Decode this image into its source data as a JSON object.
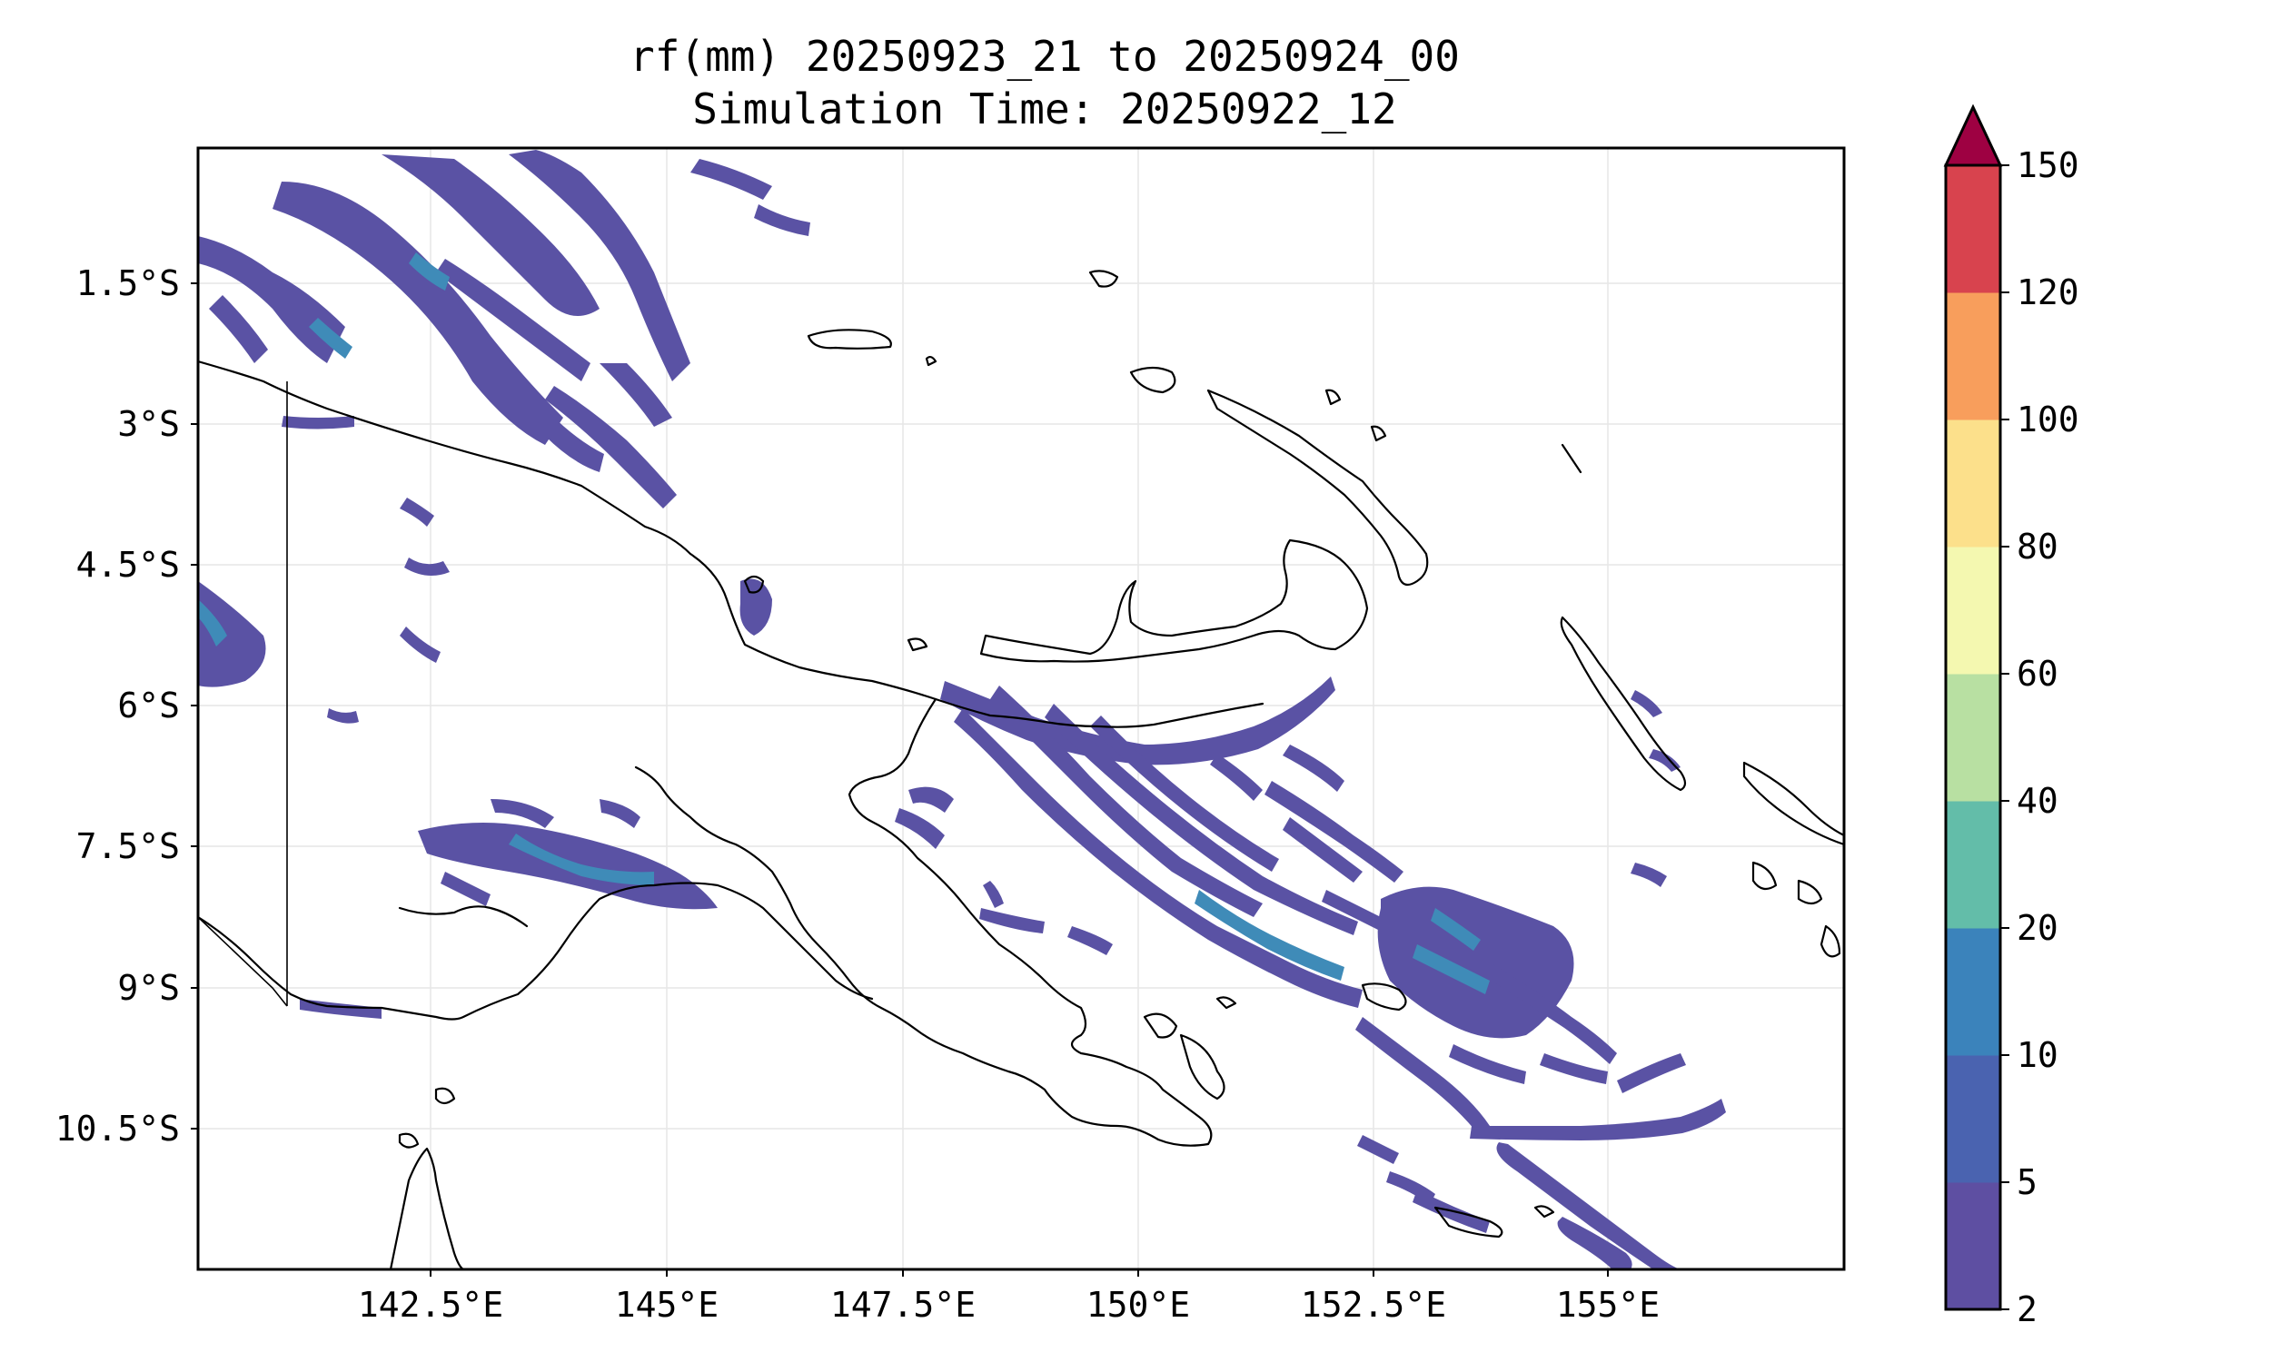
{
  "title": {
    "line1": "rf(mm) 20250923_21 to 20250924_00",
    "line2": "Simulation Time: 20250922_12"
  },
  "axes": {
    "lat_ticks": [
      "1.5°S",
      "3°S",
      "4.5°S",
      "6°S",
      "7.5°S",
      "9°S",
      "10.5°S"
    ],
    "lon_ticks": [
      "142.5°E",
      "145°E",
      "147.5°E",
      "150°E",
      "152.5°E",
      "155°E"
    ],
    "grid": true
  },
  "colorbar": {
    "levels": [
      "2",
      "5",
      "10",
      "20",
      "40",
      "60",
      "80",
      "100",
      "120",
      "150"
    ],
    "colors": [
      "#5e4fa2",
      "#4a63b0",
      "#3b83bb",
      "#63bda9",
      "#b8e0a2",
      "#f4f8b0",
      "#fce08b",
      "#f89e5c",
      "#d8434e",
      "#9e0142"
    ],
    "extend": "max"
  }
}
